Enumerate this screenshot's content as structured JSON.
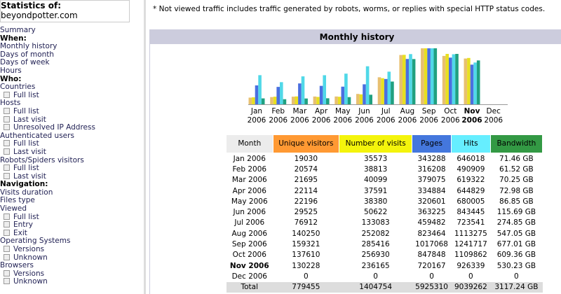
{
  "sidebar": {
    "title": "Statistics of:",
    "site": "beyondpotter.com",
    "menu": [
      {
        "text": "Summary",
        "kind": "link"
      },
      {
        "text": "When:",
        "kind": "head"
      },
      {
        "text": "Monthly history",
        "kind": "link"
      },
      {
        "text": "Days of month",
        "kind": "link"
      },
      {
        "text": "Days of week",
        "kind": "link"
      },
      {
        "text": "Hours",
        "kind": "link"
      },
      {
        "text": "Who:",
        "kind": "head"
      },
      {
        "text": "Countries",
        "kind": "link"
      },
      {
        "text": "Full list",
        "kind": "sub"
      },
      {
        "text": "Hosts",
        "kind": "link"
      },
      {
        "text": "Full list",
        "kind": "sub"
      },
      {
        "text": "Last visit",
        "kind": "sub"
      },
      {
        "text": "Unresolved IP Address",
        "kind": "sub"
      },
      {
        "text": "Authenticated users",
        "kind": "link"
      },
      {
        "text": "Full list",
        "kind": "sub"
      },
      {
        "text": "Last visit",
        "kind": "sub"
      },
      {
        "text": "Robots/Spiders visitors",
        "kind": "link"
      },
      {
        "text": "Full list",
        "kind": "sub"
      },
      {
        "text": "Last visit",
        "kind": "sub"
      },
      {
        "text": "Navigation:",
        "kind": "head"
      },
      {
        "text": "Visits duration",
        "kind": "link"
      },
      {
        "text": "Files type",
        "kind": "link"
      },
      {
        "text": "Viewed",
        "kind": "link"
      },
      {
        "text": "Full list",
        "kind": "sub"
      },
      {
        "text": "Entry",
        "kind": "sub"
      },
      {
        "text": "Exit",
        "kind": "sub"
      },
      {
        "text": "Operating Systems",
        "kind": "link"
      },
      {
        "text": "Versions",
        "kind": "sub"
      },
      {
        "text": "Unknown",
        "kind": "sub"
      },
      {
        "text": "Browsers",
        "kind": "link"
      },
      {
        "text": "Versions",
        "kind": "sub"
      },
      {
        "text": "Unknown",
        "kind": "sub"
      }
    ]
  },
  "note": "* Not viewed traffic includes traffic generated by robots, worms, or replies with special HTTP status codes.",
  "panel": {
    "title": "Monthly history",
    "chart": {
      "months": [
        {
          "label": "Jan",
          "year": "2006"
        },
        {
          "label": "Feb",
          "year": "2006"
        },
        {
          "label": "Mar",
          "year": "2006"
        },
        {
          "label": "Apr",
          "year": "2006"
        },
        {
          "label": "May",
          "year": "2006"
        },
        {
          "label": "Jun",
          "year": "2006"
        },
        {
          "label": "Jul",
          "year": "2006"
        },
        {
          "label": "Aug",
          "year": "2006"
        },
        {
          "label": "Sep",
          "year": "2006"
        },
        {
          "label": "Oct",
          "year": "2006"
        },
        {
          "label": "Nov",
          "year": "2006"
        },
        {
          "label": "Dec",
          "year": "2006"
        }
      ],
      "colors": [
        "#e8c070",
        "#e8e020",
        "#4a6fe0",
        "#50d8e8",
        "#20a080"
      ]
    },
    "table": {
      "headers": [
        {
          "text": "Month",
          "color": "#ffffff"
        },
        {
          "text": "Unique visitors",
          "color": "#ff9933"
        },
        {
          "text": "Number of visits",
          "color": "#f4f40c"
        },
        {
          "text": "Pages",
          "color": "#4477dd"
        },
        {
          "text": "Hits",
          "color": "#66eeff"
        },
        {
          "text": "Bandwidth",
          "color": "#339944"
        }
      ],
      "rows": [
        [
          "Jan 2006",
          19030,
          35573,
          343288,
          646018,
          {
            "value": 71.46,
            "label": "71.46 GB"
          }
        ],
        [
          "Feb 2006",
          20574,
          38813,
          316208,
          490909,
          {
            "value": 61.52,
            "label": "61.52 GB"
          }
        ],
        [
          "Mar 2006",
          21695,
          40099,
          379075,
          619322,
          {
            "value": 70.25,
            "label": "70.25 GB"
          }
        ],
        [
          "Apr 2006",
          22114,
          37591,
          334884,
          644829,
          {
            "value": 72.98,
            "label": "72.98 GB"
          }
        ],
        [
          "May 2006",
          22196,
          38380,
          320601,
          680005,
          {
            "value": 86.85,
            "label": "86.85 GB"
          }
        ],
        [
          "Jun 2006",
          29525,
          50622,
          363225,
          843445,
          {
            "value": 115.69,
            "label": "115.69 GB"
          }
        ],
        [
          "Jul 2006",
          76912,
          133083,
          459482,
          723541,
          {
            "value": 274.85,
            "label": "274.85 GB"
          }
        ],
        [
          "Aug 2006",
          140250,
          252082,
          823464,
          1113275,
          {
            "value": 547.05,
            "label": "547.05 GB"
          }
        ],
        [
          "Sep 2006",
          159321,
          285416,
          1017068,
          1241717,
          {
            "value": 677.01,
            "label": "677.01 GB"
          }
        ],
        [
          "Oct 2006",
          137610,
          256930,
          847848,
          1109862,
          {
            "value": 609.36,
            "label": "609.36 GB"
          }
        ],
        [
          "Nov 2006",
          130228,
          236165,
          720167,
          926339,
          {
            "value": 530.23,
            "label": "530.23 GB"
          }
        ],
        [
          "Dec 2006",
          0,
          0,
          0,
          0,
          0
        ]
      ],
      "total": [
        "Total",
        779455,
        1404754,
        5925310,
        9039262,
        {
          "value": 3117.24,
          "label": "3117.24 GB"
        }
      ]
    }
  }
}
